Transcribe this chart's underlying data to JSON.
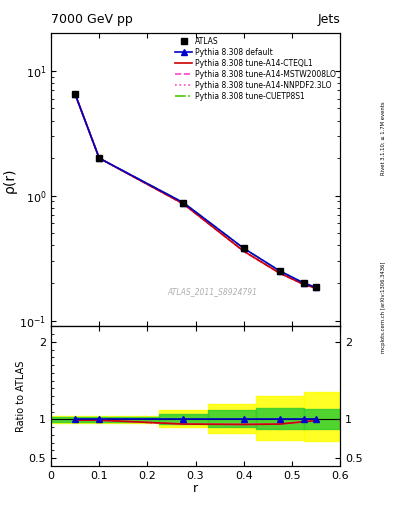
{
  "title_left": "7000 GeV pp",
  "title_right": "Jets",
  "xlabel": "r",
  "ylabel_main": "ρ(r)",
  "ylabel_ratio": "Ratio to ATLAS",
  "right_label_top": "Rivet 3.1.10; ≥ 1.7M events",
  "right_label_bottom": "mcplots.cern.ch [arXiv:1306.3436]",
  "watermark": "ATLAS_2011_S8924791",
  "r_data": [
    0.05,
    0.1,
    0.275,
    0.4,
    0.475,
    0.525,
    0.55
  ],
  "atlas_y": [
    6.5,
    2.0,
    0.88,
    0.38,
    0.25,
    0.2,
    0.185
  ],
  "pythia_default_y": [
    6.5,
    2.0,
    0.88,
    0.38,
    0.25,
    0.2,
    0.185
  ],
  "pythia_cteql1_y": [
    6.5,
    2.0,
    0.86,
    0.36,
    0.24,
    0.195,
    0.182
  ],
  "pythia_mstw_y": [
    6.5,
    2.0,
    0.86,
    0.36,
    0.24,
    0.195,
    0.182
  ],
  "pythia_nnpdf_y": [
    6.5,
    2.0,
    0.86,
    0.36,
    0.24,
    0.195,
    0.182
  ],
  "pythia_cuetp_y": [
    6.5,
    2.0,
    0.88,
    0.38,
    0.25,
    0.2,
    0.185
  ],
  "r_ratio": [
    0.05,
    0.1,
    0.275,
    0.4,
    0.475,
    0.525,
    0.55
  ],
  "ratio_default_y": [
    1.0,
    1.0,
    1.0,
    1.0,
    1.0,
    1.0,
    1.0
  ],
  "ratio_cteql1_y": [
    0.99,
    0.99,
    0.94,
    0.935,
    0.94,
    0.97,
    0.985
  ],
  "ratio_mstw_y": [
    0.99,
    0.99,
    0.94,
    0.935,
    0.94,
    0.97,
    0.985
  ],
  "ratio_nnpdf_y": [
    0.99,
    0.99,
    0.94,
    0.935,
    0.94,
    0.97,
    0.985
  ],
  "ratio_cuetp_y": [
    1.0,
    1.0,
    1.0,
    1.0,
    1.0,
    1.0,
    1.0
  ],
  "color_atlas": "#000000",
  "color_default": "#0000cc",
  "color_cteql1": "#cc0000",
  "color_mstw": "#ff44cc",
  "color_nnpdf": "#ff44cc",
  "color_cuetp": "#44cc00",
  "ylim_main": [
    0.09,
    20
  ],
  "ylim_ratio": [
    0.4,
    2.2
  ],
  "xlim": [
    0.0,
    0.6
  ]
}
